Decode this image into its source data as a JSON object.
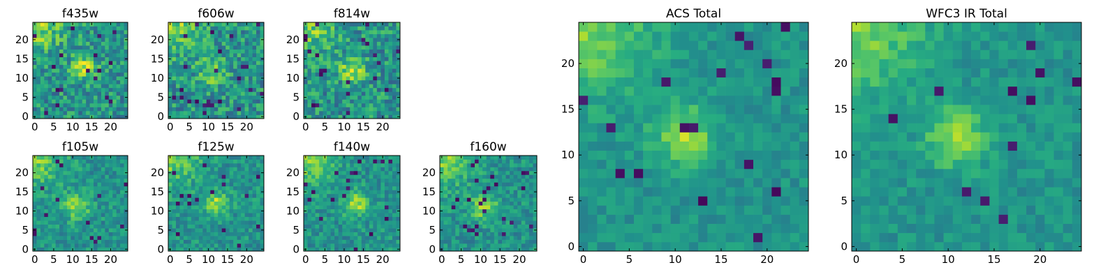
{
  "chart_data": [
    {
      "type": "heatmap",
      "title": "f435w",
      "xticks": [
        "0",
        "5",
        "10",
        "15",
        "20"
      ],
      "yticks": [
        "0",
        "5",
        "10",
        "15",
        "20"
      ],
      "xlim": [
        -0.5,
        24.5
      ],
      "ylim": [
        -0.5,
        24.5
      ],
      "grid_size": 25,
      "colormap": "viridis",
      "peak": [
        13,
        13
      ],
      "noise": "high"
    },
    {
      "type": "heatmap",
      "title": "f606w",
      "xticks": [
        "0",
        "5",
        "10",
        "15",
        "20"
      ],
      "yticks": [
        "0",
        "5",
        "10",
        "15",
        "20"
      ],
      "xlim": [
        -0.5,
        24.5
      ],
      "ylim": [
        -0.5,
        24.5
      ],
      "grid_size": 25,
      "colormap": "viridis",
      "peak": [
        11,
        12
      ],
      "noise": "high"
    },
    {
      "type": "heatmap",
      "title": "f814w",
      "xticks": [
        "0",
        "5",
        "10",
        "15",
        "20"
      ],
      "yticks": [
        "0",
        "5",
        "10",
        "15",
        "20"
      ],
      "xlim": [
        -0.5,
        24.5
      ],
      "ylim": [
        -0.5,
        24.5
      ],
      "grid_size": 25,
      "colormap": "viridis",
      "peak": [
        12,
        12
      ],
      "noise": "high"
    },
    {
      "type": "heatmap",
      "title": "f105w",
      "xticks": [
        "0",
        "5",
        "10",
        "15",
        "20"
      ],
      "yticks": [
        "0",
        "5",
        "10",
        "15",
        "20"
      ],
      "xlim": [
        -0.5,
        24.5
      ],
      "ylim": [
        -0.5,
        24.5
      ],
      "grid_size": 25,
      "colormap": "viridis",
      "peak": [
        11,
        11
      ],
      "noise": "medium"
    },
    {
      "type": "heatmap",
      "title": "f125w",
      "xticks": [
        "0",
        "5",
        "10",
        "15",
        "20"
      ],
      "yticks": [
        "0",
        "5",
        "10",
        "15",
        "20"
      ],
      "xlim": [
        -0.5,
        24.5
      ],
      "ylim": [
        -0.5,
        24.5
      ],
      "grid_size": 25,
      "colormap": "viridis",
      "peak": [
        12,
        12
      ],
      "noise": "medium"
    },
    {
      "type": "heatmap",
      "title": "f140w",
      "xticks": [
        "0",
        "5",
        "10",
        "15",
        "20"
      ],
      "yticks": [
        "0",
        "5",
        "10",
        "15",
        "20"
      ],
      "xlim": [
        -0.5,
        24.5
      ],
      "ylim": [
        -0.5,
        24.5
      ],
      "grid_size": 25,
      "colormap": "viridis",
      "peak": [
        13,
        12
      ],
      "noise": "medium"
    },
    {
      "type": "heatmap",
      "title": "f160w",
      "xticks": [
        "0",
        "5",
        "10",
        "15",
        "20"
      ],
      "yticks": [
        "0",
        "5",
        "10",
        "15",
        "20"
      ],
      "xlim": [
        -0.5,
        24.5
      ],
      "ylim": [
        -0.5,
        24.5
      ],
      "grid_size": 25,
      "colormap": "viridis",
      "peak": [
        11,
        11
      ],
      "noise": "medium"
    },
    {
      "type": "heatmap",
      "title": "ACS Total",
      "xticks": [
        "0",
        "5",
        "10",
        "15",
        "20"
      ],
      "yticks": [
        "0",
        "5",
        "10",
        "15",
        "20"
      ],
      "xlim": [
        -0.5,
        24.5
      ],
      "ylim": [
        -0.5,
        24.5
      ],
      "grid_size": 25,
      "colormap": "viridis",
      "peak": [
        11,
        12
      ],
      "noise": "low"
    },
    {
      "type": "heatmap",
      "title": "WFC3 IR Total",
      "xticks": [
        "0",
        "5",
        "10",
        "15",
        "20"
      ],
      "yticks": [
        "0",
        "5",
        "10",
        "15",
        "20"
      ],
      "xlim": [
        -0.5,
        24.5
      ],
      "ylim": [
        -0.5,
        24.5
      ],
      "grid_size": 25,
      "colormap": "viridis",
      "peak": [
        11,
        12
      ],
      "noise": "low"
    }
  ]
}
